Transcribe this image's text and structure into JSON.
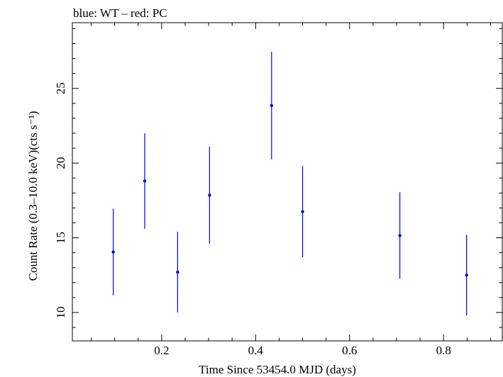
{
  "chart_data": {
    "type": "scatter",
    "title": "blue: WT – red: PC",
    "xlabel": "Time Since 53454.0 MJD (days)",
    "ylabel": "Count Rate (0.3–10.0 keV)(cts s⁻¹)",
    "xlim": [
      0.01,
      0.925
    ],
    "ylim": [
      8.1,
      29.4
    ],
    "xticks": [
      0.2,
      0.4,
      0.6,
      0.8
    ],
    "xtick_labels": [
      "0.2",
      "0.4",
      "0.6",
      "0.8"
    ],
    "yticks": [
      10,
      15,
      20,
      25
    ],
    "ytick_labels": [
      "10",
      "15",
      "20",
      "25"
    ],
    "grid": false,
    "series": [
      {
        "color": "#0000ee",
        "x": [
          0.097,
          0.164,
          0.234,
          0.302,
          0.434,
          0.5,
          0.707,
          0.849
        ],
        "y": [
          14.05,
          18.8,
          12.7,
          17.85,
          23.85,
          16.75,
          15.15,
          12.5
        ],
        "y_err": [
          2.9,
          3.2,
          2.7,
          3.25,
          3.6,
          3.05,
          2.9,
          2.7
        ]
      }
    ]
  }
}
